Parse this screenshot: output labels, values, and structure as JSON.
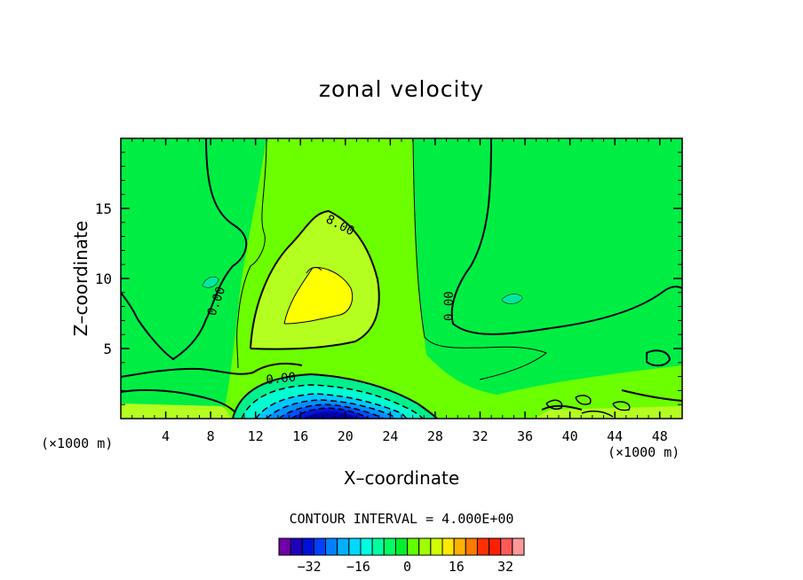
{
  "chart_data": {
    "type": "heatmap",
    "title": "zonal velocity",
    "xlabel": "X–coordinate",
    "ylabel": "Z–coordinate",
    "x_unit": "(×1000 m)",
    "xlim": [
      0,
      50
    ],
    "ylim": [
      0,
      20
    ],
    "x_ticks": [
      4,
      8,
      12,
      16,
      20,
      24,
      28,
      32,
      36,
      40,
      44,
      48
    ],
    "y_ticks": [
      5,
      10,
      15
    ],
    "contour_interval": "CONTOUR INTERVAL = 4.000E+00",
    "contour_labels": [
      "8.00",
      "0.00",
      "0.00",
      "0.00"
    ],
    "features": [
      {
        "name": "positive core",
        "x": 18,
        "z": 8.5,
        "value": 16
      },
      {
        "name": "negative jet",
        "x": 19,
        "z": 0.3,
        "value": -32
      }
    ],
    "colorbar": {
      "levels": [
        -40,
        -36,
        -32,
        -28,
        -24,
        -20,
        -16,
        -12,
        -8,
        -4,
        0,
        4,
        8,
        12,
        16,
        20,
        24,
        28,
        32,
        36,
        40
      ],
      "tick_labels": [
        "−32",
        "−16",
        "0",
        "16",
        "32"
      ],
      "tick_values": [
        -32,
        -16,
        0,
        16,
        32
      ],
      "colors": [
        "#7000a8",
        "#2000b8",
        "#0010d8",
        "#0040ff",
        "#0080ff",
        "#00b0ff",
        "#00d8ff",
        "#00ffe0",
        "#00ffa0",
        "#00ff60",
        "#00f030",
        "#60ff00",
        "#a0ff00",
        "#d0ff00",
        "#ffe800",
        "#ffb000",
        "#ff7800",
        "#ff3000",
        "#ff2000",
        "#ff5858",
        "#ff9898"
      ]
    },
    "fill_colors": {
      "zero_band": "#00ee44",
      "low_positive": "#6cff00",
      "mid_positive": "#b4ff20",
      "core": "#ffff00",
      "neg1": "#00f08c",
      "neg2": "#00ffd0",
      "neg3": "#00c8ff",
      "neg4": "#0090ff",
      "neg5": "#0050ff",
      "neg6": "#0018d8",
      "neg7": "#0000a8"
    }
  }
}
